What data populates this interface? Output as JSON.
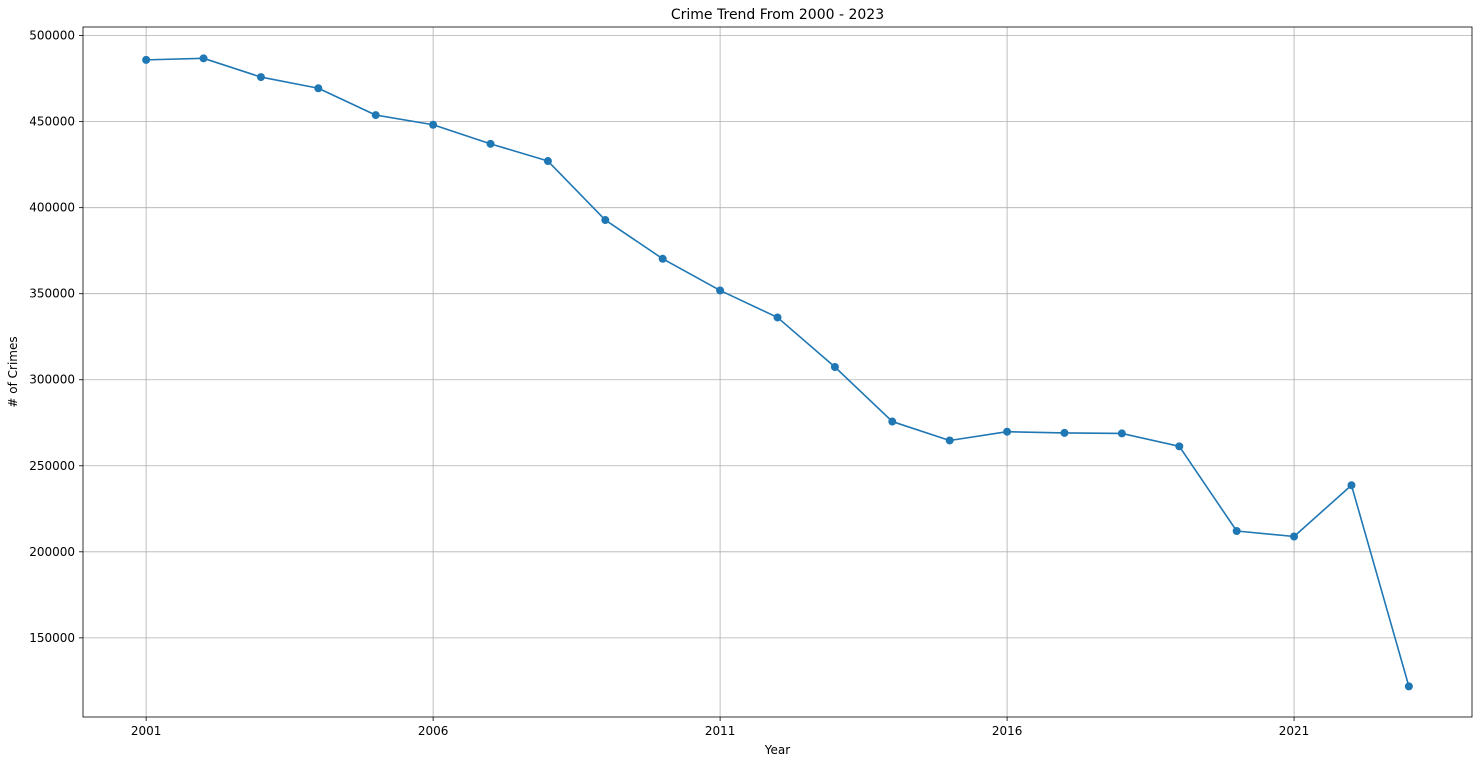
{
  "chart_data": {
    "type": "line",
    "title": "Crime Trend From 2000 - 2023",
    "xlabel": "Year",
    "ylabel": "# of Crimes",
    "xlim": [
      1999.9,
      2024.1
    ],
    "ylim": [
      104000,
      505000
    ],
    "xticks": [
      2001,
      2006,
      2011,
      2016,
      2021
    ],
    "yticks": [
      150000,
      200000,
      250000,
      300000,
      350000,
      400000,
      450000,
      500000
    ],
    "grid": true,
    "marker": "circle",
    "color": "#1f77b4",
    "series": [
      {
        "x": [
          2001,
          2002,
          2003,
          2004,
          2005,
          2006,
          2007,
          2008,
          2009,
          2010,
          2011,
          2012,
          2013,
          2014,
          2015,
          2016,
          2017,
          2018,
          2019,
          2020,
          2021,
          2022,
          2023
        ],
        "values": [
          485900,
          486800,
          475900,
          469400,
          453800,
          448200,
          437100,
          427100,
          392800,
          370300,
          351900,
          336200,
          307400,
          275700,
          264700,
          269800,
          269100,
          268800,
          261300,
          212100,
          208900,
          238700,
          121800
        ]
      }
    ]
  }
}
